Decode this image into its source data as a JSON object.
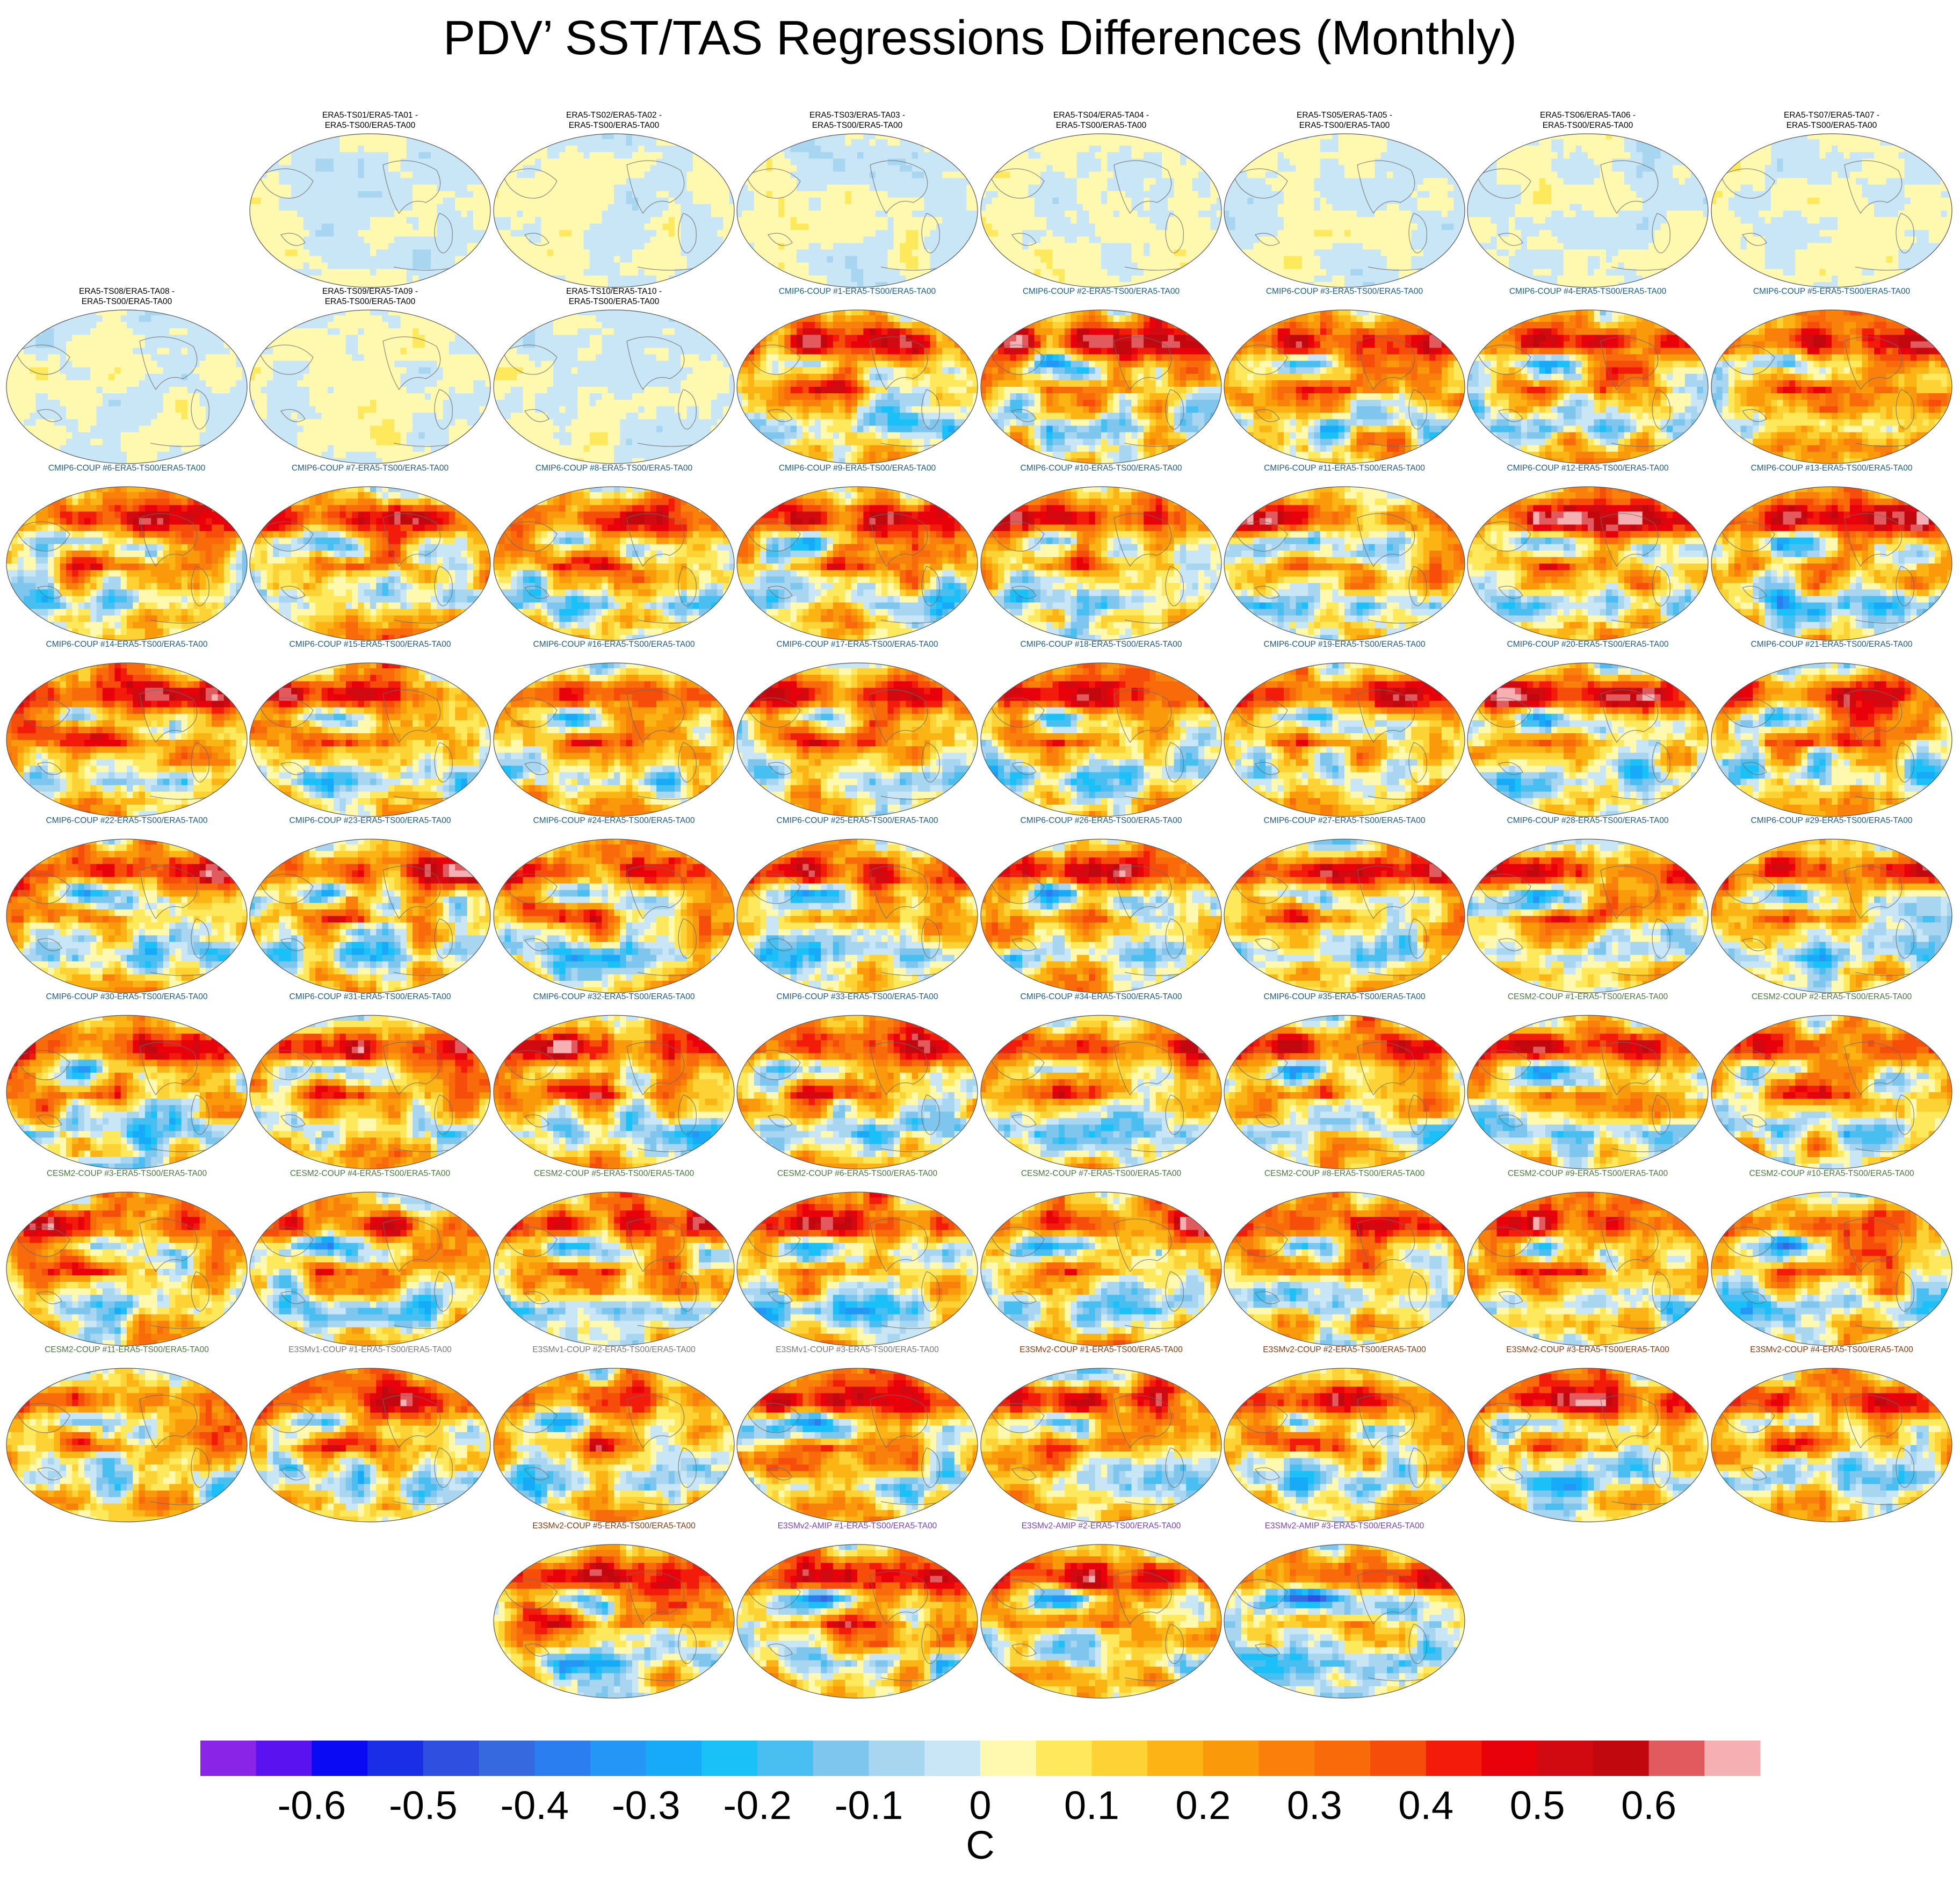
{
  "title": "PDV’ SST/TAS Regressions Differences (Monthly)",
  "group_colors": {
    "ERA5": "#000000",
    "CMIP6": "#1a5f8a",
    "CESM2": "#4a7a40",
    "E3SMv1": "#777777",
    "E3SMv2-COUP": "#8a3a10",
    "E3SMv2-AMIP": "#7a44c0"
  },
  "panels": [
    {
      "label": "ERA5-TS01/ERA5-TA01 -\nERA5-TS00/ERA5-TA00",
      "group": "ERA5"
    },
    {
      "label": "ERA5-TS02/ERA5-TA02 -\nERA5-TS00/ERA5-TA00",
      "group": "ERA5"
    },
    {
      "label": "ERA5-TS03/ERA5-TA03 -\nERA5-TS00/ERA5-TA00",
      "group": "ERA5"
    },
    {
      "label": "ERA5-TS04/ERA5-TA04 -\nERA5-TS00/ERA5-TA00",
      "group": "ERA5"
    },
    {
      "label": "ERA5-TS05/ERA5-TA05 -\nERA5-TS00/ERA5-TA00",
      "group": "ERA5"
    },
    {
      "label": "ERA5-TS06/ERA5-TA06 -\nERA5-TS00/ERA5-TA00",
      "group": "ERA5"
    },
    {
      "label": "ERA5-TS07/ERA5-TA07 -\nERA5-TS00/ERA5-TA00",
      "group": "ERA5"
    },
    {
      "label": "ERA5-TS08/ERA5-TA08 -\nERA5-TS00/ERA5-TA00",
      "group": "ERA5"
    },
    {
      "label": "ERA5-TS09/ERA5-TA09 -\nERA5-TS00/ERA5-TA00",
      "group": "ERA5"
    },
    {
      "label": "ERA5-TS10/ERA5-TA10 -\nERA5-TS00/ERA5-TA00",
      "group": "ERA5"
    },
    {
      "label": "CMIP6-COUP  #1-ERA5-TS00/ERA5-TA00",
      "group": "CMIP6"
    },
    {
      "label": "CMIP6-COUP  #2-ERA5-TS00/ERA5-TA00",
      "group": "CMIP6"
    },
    {
      "label": "CMIP6-COUP  #3-ERA5-TS00/ERA5-TA00",
      "group": "CMIP6"
    },
    {
      "label": "CMIP6-COUP  #4-ERA5-TS00/ERA5-TA00",
      "group": "CMIP6"
    },
    {
      "label": "CMIP6-COUP  #5-ERA5-TS00/ERA5-TA00",
      "group": "CMIP6"
    },
    {
      "label": "CMIP6-COUP  #6-ERA5-TS00/ERA5-TA00",
      "group": "CMIP6"
    },
    {
      "label": "CMIP6-COUP  #7-ERA5-TS00/ERA5-TA00",
      "group": "CMIP6"
    },
    {
      "label": "CMIP6-COUP  #8-ERA5-TS00/ERA5-TA00",
      "group": "CMIP6"
    },
    {
      "label": "CMIP6-COUP  #9-ERA5-TS00/ERA5-TA00",
      "group": "CMIP6"
    },
    {
      "label": "CMIP6-COUP  #10-ERA5-TS00/ERA5-TA00",
      "group": "CMIP6"
    },
    {
      "label": "CMIP6-COUP  #11-ERA5-TS00/ERA5-TA00",
      "group": "CMIP6"
    },
    {
      "label": "CMIP6-COUP  #12-ERA5-TS00/ERA5-TA00",
      "group": "CMIP6"
    },
    {
      "label": "CMIP6-COUP  #13-ERA5-TS00/ERA5-TA00",
      "group": "CMIP6"
    },
    {
      "label": "CMIP6-COUP  #14-ERA5-TS00/ERA5-TA00",
      "group": "CMIP6"
    },
    {
      "label": "CMIP6-COUP  #15-ERA5-TS00/ERA5-TA00",
      "group": "CMIP6"
    },
    {
      "label": "CMIP6-COUP  #16-ERA5-TS00/ERA5-TA00",
      "group": "CMIP6"
    },
    {
      "label": "CMIP6-COUP  #17-ERA5-TS00/ERA5-TA00",
      "group": "CMIP6"
    },
    {
      "label": "CMIP6-COUP  #18-ERA5-TS00/ERA5-TA00",
      "group": "CMIP6"
    },
    {
      "label": "CMIP6-COUP  #19-ERA5-TS00/ERA5-TA00",
      "group": "CMIP6"
    },
    {
      "label": "CMIP6-COUP  #20-ERA5-TS00/ERA5-TA00",
      "group": "CMIP6"
    },
    {
      "label": "CMIP6-COUP  #21-ERA5-TS00/ERA5-TA00",
      "group": "CMIP6"
    },
    {
      "label": "CMIP6-COUP  #22-ERA5-TS00/ERA5-TA00",
      "group": "CMIP6"
    },
    {
      "label": "CMIP6-COUP  #23-ERA5-TS00/ERA5-TA00",
      "group": "CMIP6"
    },
    {
      "label": "CMIP6-COUP  #24-ERA5-TS00/ERA5-TA00",
      "group": "CMIP6"
    },
    {
      "label": "CMIP6-COUP  #25-ERA5-TS00/ERA5-TA00",
      "group": "CMIP6"
    },
    {
      "label": "CMIP6-COUP  #26-ERA5-TS00/ERA5-TA00",
      "group": "CMIP6"
    },
    {
      "label": "CMIP6-COUP  #27-ERA5-TS00/ERA5-TA00",
      "group": "CMIP6"
    },
    {
      "label": "CMIP6-COUP  #28-ERA5-TS00/ERA5-TA00",
      "group": "CMIP6"
    },
    {
      "label": "CMIP6-COUP  #29-ERA5-TS00/ERA5-TA00",
      "group": "CMIP6"
    },
    {
      "label": "CMIP6-COUP  #30-ERA5-TS00/ERA5-TA00",
      "group": "CMIP6"
    },
    {
      "label": "CMIP6-COUP  #31-ERA5-TS00/ERA5-TA00",
      "group": "CMIP6"
    },
    {
      "label": "CMIP6-COUP  #32-ERA5-TS00/ERA5-TA00",
      "group": "CMIP6"
    },
    {
      "label": "CMIP6-COUP  #33-ERA5-TS00/ERA5-TA00",
      "group": "CMIP6"
    },
    {
      "label": "CMIP6-COUP  #34-ERA5-TS00/ERA5-TA00",
      "group": "CMIP6"
    },
    {
      "label": "CMIP6-COUP  #35-ERA5-TS00/ERA5-TA00",
      "group": "CMIP6"
    },
    {
      "label": "CESM2-COUP  #1-ERA5-TS00/ERA5-TA00",
      "group": "CESM2"
    },
    {
      "label": "CESM2-COUP  #2-ERA5-TS00/ERA5-TA00",
      "group": "CESM2"
    },
    {
      "label": "CESM2-COUP  #3-ERA5-TS00/ERA5-TA00",
      "group": "CESM2"
    },
    {
      "label": "CESM2-COUP  #4-ERA5-TS00/ERA5-TA00",
      "group": "CESM2"
    },
    {
      "label": "CESM2-COUP  #5-ERA5-TS00/ERA5-TA00",
      "group": "CESM2"
    },
    {
      "label": "CESM2-COUP  #6-ERA5-TS00/ERA5-TA00",
      "group": "CESM2"
    },
    {
      "label": "CESM2-COUP  #7-ERA5-TS00/ERA5-TA00",
      "group": "CESM2"
    },
    {
      "label": "CESM2-COUP  #8-ERA5-TS00/ERA5-TA00",
      "group": "CESM2"
    },
    {
      "label": "CESM2-COUP  #9-ERA5-TS00/ERA5-TA00",
      "group": "CESM2"
    },
    {
      "label": "CESM2-COUP  #10-ERA5-TS00/ERA5-TA00",
      "group": "CESM2"
    },
    {
      "label": "CESM2-COUP  #11-ERA5-TS00/ERA5-TA00",
      "group": "CESM2"
    },
    {
      "label": "E3SMv1-COUP #1-ERA5-TS00/ERA5-TA00",
      "group": "E3SMv1"
    },
    {
      "label": "E3SMv1-COUP #2-ERA5-TS00/ERA5-TA00",
      "group": "E3SMv1"
    },
    {
      "label": "E3SMv1-COUP #3-ERA5-TS00/ERA5-TA00",
      "group": "E3SMv1"
    },
    {
      "label": "E3SMv2-COUP #1-ERA5-TS00/ERA5-TA00",
      "group": "E3SMv2-COUP"
    },
    {
      "label": "E3SMv2-COUP #2-ERA5-TS00/ERA5-TA00",
      "group": "E3SMv2-COUP"
    },
    {
      "label": "E3SMv2-COUP #3-ERA5-TS00/ERA5-TA00",
      "group": "E3SMv2-COUP"
    },
    {
      "label": "E3SMv2-COUP #4-ERA5-TS00/ERA5-TA00",
      "group": "E3SMv2-COUP"
    },
    {
      "label": "E3SMv2-COUP #5-ERA5-TS00/ERA5-TA00",
      "group": "E3SMv2-COUP"
    },
    {
      "label": "E3SMv2-AMIP #1-ERA5-TS00/ERA5-TA00",
      "group": "E3SMv2-AMIP"
    },
    {
      "label": "E3SMv2-AMIP #2-ERA5-TS00/ERA5-TA00",
      "group": "E3SMv2-AMIP"
    },
    {
      "label": "E3SMv2-AMIP #3-ERA5-TS00/ERA5-TA00",
      "group": "E3SMv2-AMIP"
    }
  ],
  "chart_data": {
    "type": "heatmap",
    "title": "PDV’ SST/TAS Regressions Differences (Monthly)",
    "colorbar": {
      "units": "C",
      "tick_labels": [
        "-0.6",
        "-0.5",
        "-0.4",
        "-0.3",
        "-0.2",
        "-0.1",
        "0",
        "0.1",
        "0.2",
        "0.3",
        "0.4",
        "0.5",
        "0.6"
      ],
      "tick_values": [
        -0.6,
        -0.5,
        -0.4,
        -0.3,
        -0.2,
        -0.1,
        0,
        0.1,
        0.2,
        0.3,
        0.4,
        0.5,
        0.6
      ],
      "levels": [
        -0.65,
        -0.6,
        -0.55,
        -0.5,
        -0.45,
        -0.4,
        -0.35,
        -0.3,
        -0.25,
        -0.2,
        -0.15,
        -0.1,
        -0.05,
        0,
        0.05,
        0.1,
        0.15,
        0.2,
        0.25,
        0.3,
        0.35,
        0.4,
        0.45,
        0.5,
        0.55,
        0.6,
        0.65
      ],
      "colors": [
        "#8a24e6",
        "#5a12f0",
        "#0a0af5",
        "#1a2ee8",
        "#2f4fe0",
        "#3669e0",
        "#2a7ef0",
        "#2496f5",
        "#16aaf8",
        "#1ac0f8",
        "#48bff0",
        "#7ec6ee",
        "#a8d6f0",
        "#c8e6f6",
        "#fff9b0",
        "#fee85c",
        "#fcd234",
        "#fbb414",
        "#fa9a0a",
        "#f9800a",
        "#f86a0a",
        "#f64e0a",
        "#f31c0a",
        "#e8000a",
        "#d00a10",
        "#c0080e",
        "#e05a5e",
        "#f5b0b4"
      ]
    },
    "projection": "Robinson (global)",
    "n_panels": 67
  }
}
